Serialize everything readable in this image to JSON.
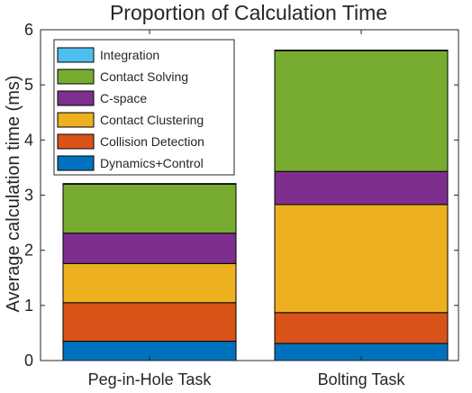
{
  "chart_data": {
    "type": "bar",
    "stacked": true,
    "title": "Proportion of Calculation Time",
    "xlabel": "",
    "ylabel": "Average calculation time (ms)",
    "ylim": [
      0,
      6
    ],
    "yticks": [
      "0",
      "1",
      "2",
      "3",
      "4",
      "5",
      "6"
    ],
    "categories": [
      "Peg-in-Hole Task",
      "Bolting Task"
    ],
    "legend_position": "top-left",
    "grid": false,
    "series": [
      {
        "name": "Dynamics+Control",
        "color": "#0072BD",
        "values": [
          0.35,
          0.31
        ]
      },
      {
        "name": "Collision Detection",
        "color": "#D95319",
        "values": [
          0.7,
          0.56
        ]
      },
      {
        "name": "Contact Clustering",
        "color": "#EDB120",
        "values": [
          0.71,
          1.96
        ]
      },
      {
        "name": "C-space",
        "color": "#7E2F8E",
        "values": [
          0.55,
          0.6
        ]
      },
      {
        "name": "Contact Solving",
        "color": "#77AC30",
        "values": [
          0.89,
          2.19
        ]
      },
      {
        "name": "Integration",
        "color": "#4DBEEE",
        "values": [
          0.01,
          0.01
        ]
      }
    ]
  }
}
